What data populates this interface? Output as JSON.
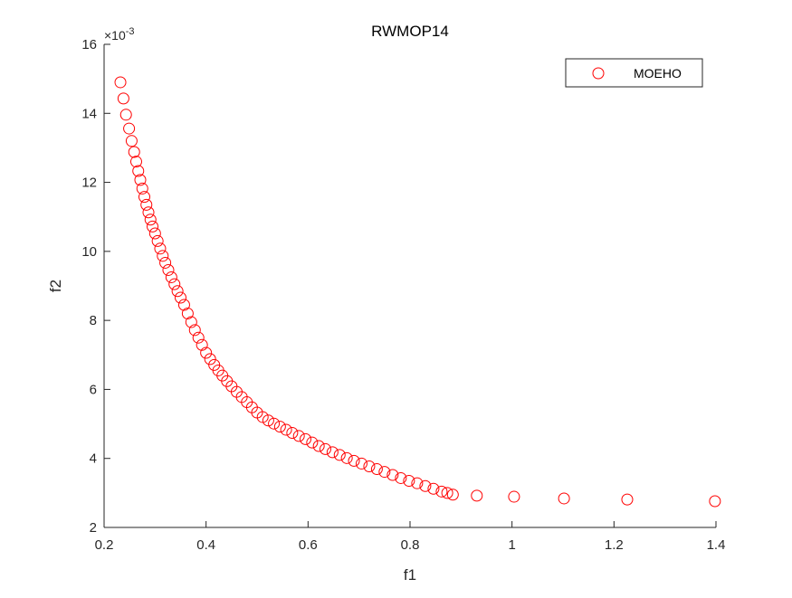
{
  "chart_data": {
    "type": "scatter",
    "title": "RWMOP14",
    "xlabel": "f1",
    "ylabel": "f2",
    "xlim": [
      0.2,
      1.4
    ],
    "ylim": [
      2,
      16
    ],
    "y_exponent_label": "×10",
    "y_exponent_power": "-3",
    "y_scale": 0.001,
    "xticks": [
      "0.2",
      "0.4",
      "0.6",
      "0.8",
      "1",
      "1.2",
      "1.4"
    ],
    "xtick_values": [
      0.2,
      0.4,
      0.6,
      0.8,
      1.0,
      1.2,
      1.4
    ],
    "yticks": [
      "2",
      "4",
      "6",
      "8",
      "10",
      "12",
      "14",
      "16"
    ],
    "ytick_values": [
      2,
      4,
      6,
      8,
      10,
      12,
      14,
      16
    ],
    "grid": false,
    "legend_position": "top-right",
    "series": [
      {
        "name": "MOEHO",
        "color": "#ff0000",
        "marker": "circle-open",
        "x": [
          0.232,
          0.238,
          0.243,
          0.249,
          0.254,
          0.259,
          0.263,
          0.267,
          0.271,
          0.275,
          0.279,
          0.283,
          0.287,
          0.291,
          0.295,
          0.3,
          0.305,
          0.31,
          0.315,
          0.32,
          0.326,
          0.332,
          0.338,
          0.344,
          0.35,
          0.357,
          0.364,
          0.371,
          0.378,
          0.385,
          0.392,
          0.4,
          0.408,
          0.416,
          0.424,
          0.432,
          0.441,
          0.45,
          0.46,
          0.47,
          0.48,
          0.49,
          0.5,
          0.511,
          0.522,
          0.533,
          0.545,
          0.557,
          0.569,
          0.582,
          0.595,
          0.608,
          0.621,
          0.634,
          0.648,
          0.662,
          0.676,
          0.69,
          0.705,
          0.72,
          0.735,
          0.75,
          0.766,
          0.782,
          0.798,
          0.814,
          0.83,
          0.846,
          0.862,
          0.873,
          0.884,
          0.931,
          1.004,
          1.102,
          1.226,
          1.398
        ],
        "y": [
          14.9,
          14.43,
          13.96,
          13.56,
          13.2,
          12.88,
          12.6,
          12.33,
          12.07,
          11.82,
          11.58,
          11.35,
          11.13,
          10.92,
          10.72,
          10.52,
          10.3,
          10.08,
          9.87,
          9.67,
          9.46,
          9.25,
          9.05,
          8.85,
          8.66,
          8.45,
          8.2,
          7.95,
          7.72,
          7.5,
          7.29,
          7.06,
          6.88,
          6.71,
          6.55,
          6.4,
          6.24,
          6.09,
          5.93,
          5.78,
          5.63,
          5.48,
          5.33,
          5.2,
          5.1,
          5.01,
          4.92,
          4.83,
          4.74,
          4.65,
          4.56,
          4.46,
          4.36,
          4.27,
          4.18,
          4.1,
          4.01,
          3.93,
          3.85,
          3.77,
          3.69,
          3.61,
          3.52,
          3.43,
          3.35,
          3.28,
          3.2,
          3.12,
          3.04,
          3.0,
          2.95,
          2.92,
          2.89,
          2.84,
          2.81,
          2.76
        ]
      }
    ]
  }
}
